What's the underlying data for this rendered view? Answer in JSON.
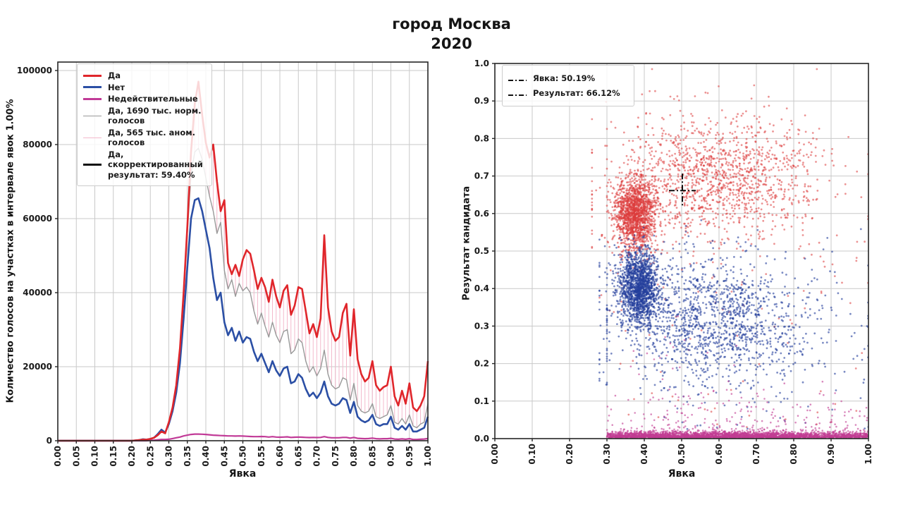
{
  "title": {
    "line1": "город Москва",
    "line2": "2020"
  },
  "colors": {
    "yes_red": "#e0262b",
    "no_blue": "#2b4fa5",
    "invalid_magenta": "#c13a97",
    "normal_gray": "#999999",
    "anomal_pink": "#f3b9cc",
    "corrected_black": "#111111",
    "scatter_red": "#dd3c3c",
    "scatter_blue": "#24409c",
    "scatter_magenta": "#c23c93",
    "grid": "#c9c9c9",
    "spine": "#262626",
    "text": "#1a1a1a"
  },
  "chart_data": [
    {
      "type": "line",
      "xlabel": "Явка",
      "ylabel": "Количество голосов на участках в интервале явок 1.00%",
      "xlim": [
        0,
        1
      ],
      "ylim": [
        0,
        102286
      ],
      "grid": true,
      "x_tick_labels": [
        "0.00",
        "0.05",
        "0.10",
        "0.15",
        "0.20",
        "0.25",
        "0.30",
        "0.35",
        "0.40",
        "0.45",
        "0.50",
        "0.55",
        "0.60",
        "0.65",
        "0.70",
        "0.75",
        "0.80",
        "0.85",
        "0.90",
        "0.95",
        "1.00"
      ],
      "y_tick_labels": [
        "0",
        "20000",
        "40000",
        "60000",
        "80000",
        "100000"
      ],
      "y_ticks": [
        0,
        20000,
        40000,
        60000,
        80000,
        100000
      ],
      "x_start": 0.0,
      "x_step": 0.01,
      "legend_position": "upper left",
      "legend": [
        {
          "label": "Да",
          "color": "#e0262b",
          "lw": 3,
          "style": "solid"
        },
        {
          "label": "Нет",
          "color": "#2b4fa5",
          "lw": 3,
          "style": "solid"
        },
        {
          "label": "Недействительные",
          "color": "#c13a97",
          "lw": 3,
          "style": "solid"
        },
        {
          "label": "Да, 1690 тыс. норм. голосов",
          "color": "#999999",
          "lw": 1.5,
          "style": "solid"
        },
        {
          "label": "Да, 565 тыс. аном. голосов",
          "color": "#f3b9cc",
          "lw": 1.5,
          "style": "solid"
        },
        {
          "label": "Да, скорректированный\nрезультат: 59.40%",
          "color": "#111111",
          "lw": 3,
          "style": "solid"
        }
      ],
      "hatch_fill": {
        "between": [
          "норм. голосов",
          "Да"
        ],
        "color": "#f3b9cc",
        "style": "vertical-lines"
      },
      "series": [
        {
          "name": "Да",
          "color": "#e0262b",
          "lw": 2.6,
          "values": [
            0,
            0,
            0,
            0,
            0,
            0,
            0,
            0,
            0,
            0,
            0,
            0,
            0,
            0,
            0,
            0,
            0,
            0,
            0,
            0,
            0,
            100,
            200,
            300,
            300,
            500,
            800,
            1500,
            2500,
            2000,
            5000,
            9000,
            15000,
            25000,
            40000,
            58000,
            78000,
            91000,
            97000,
            88000,
            80500,
            76500,
            80000,
            70000,
            62000,
            65000,
            48000,
            45000,
            47500,
            44500,
            49000,
            51500,
            50500,
            46000,
            41000,
            44000,
            41500,
            37500,
            43500,
            39000,
            36000,
            40500,
            42000,
            34000,
            36500,
            41500,
            41000,
            35000,
            29000,
            31500,
            28000,
            33000,
            55500,
            36000,
            29500,
            27000,
            28000,
            34500,
            37000,
            23000,
            35500,
            22000,
            18000,
            16000,
            17000,
            21500,
            15000,
            13500,
            14500,
            15000,
            20000,
            12000,
            9500,
            13500,
            10000,
            15500,
            9000,
            8000,
            9500,
            12000,
            21500
          ]
        },
        {
          "name": "Нет",
          "color": "#2b4fa5",
          "lw": 2.6,
          "values": [
            0,
            0,
            0,
            0,
            0,
            0,
            0,
            0,
            0,
            0,
            0,
            0,
            0,
            0,
            0,
            0,
            0,
            0,
            0,
            0,
            0,
            100,
            200,
            400,
            300,
            500,
            800,
            1800,
            3000,
            2200,
            4500,
            8000,
            13000,
            21000,
            33000,
            47000,
            60000,
            65000,
            65500,
            62000,
            57000,
            52000,
            44000,
            38000,
            40000,
            32000,
            28500,
            30500,
            27000,
            29500,
            26500,
            28000,
            27500,
            24000,
            21500,
            23500,
            21000,
            18500,
            21500,
            19000,
            17500,
            19500,
            20000,
            15500,
            16000,
            18000,
            17000,
            14000,
            12000,
            13000,
            11500,
            13000,
            16000,
            12000,
            10000,
            9500,
            10000,
            11500,
            11000,
            7500,
            10500,
            6500,
            5500,
            5000,
            5500,
            7000,
            4500,
            4000,
            4500,
            4500,
            6500,
            3500,
            3000,
            4000,
            3000,
            4500,
            2500,
            2500,
            3000,
            3500,
            6500
          ]
        },
        {
          "name": "Да, норм. голоса",
          "color": "#999999",
          "lw": 1.4,
          "values": [
            0,
            0,
            0,
            0,
            0,
            0,
            0,
            0,
            0,
            0,
            0,
            0,
            0,
            0,
            0,
            0,
            0,
            0,
            0,
            0,
            0,
            100,
            200,
            300,
            300,
            500,
            800,
            1400,
            2400,
            1900,
            4800,
            8800,
            14500,
            24000,
            38500,
            56000,
            72000,
            78000,
            79000,
            76000,
            71000,
            66000,
            62000,
            56000,
            59000,
            46000,
            41000,
            43500,
            39000,
            42500,
            40500,
            41500,
            40000,
            35000,
            31500,
            34500,
            31000,
            28000,
            32000,
            28500,
            26500,
            29500,
            30000,
            23500,
            24500,
            27500,
            26500,
            21500,
            18500,
            20000,
            17500,
            19500,
            24500,
            18000,
            15000,
            14000,
            14500,
            17000,
            16500,
            11000,
            15500,
            9500,
            8000,
            7500,
            8000,
            10000,
            6500,
            6000,
            6500,
            7000,
            9500,
            5000,
            4500,
            6000,
            4500,
            7000,
            4000,
            3500,
            4500,
            5000,
            10000
          ]
        },
        {
          "name": "Недействительные",
          "color": "#c13a97",
          "lw": 2.2,
          "values": [
            0,
            0,
            0,
            0,
            0,
            0,
            0,
            0,
            0,
            0,
            0,
            0,
            0,
            0,
            0,
            0,
            0,
            0,
            0,
            0,
            0,
            0,
            0,
            0,
            0,
            100,
            150,
            250,
            350,
            350,
            400,
            600,
            800,
            1000,
            1300,
            1500,
            1700,
            1800,
            1800,
            1750,
            1700,
            1600,
            1500,
            1450,
            1400,
            1350,
            1300,
            1300,
            1250,
            1300,
            1250,
            1200,
            1150,
            1100,
            1100,
            1150,
            1100,
            1000,
            1100,
            1000,
            950,
            1000,
            1050,
            900,
            950,
            1000,
            950,
            900,
            850,
            900,
            850,
            900,
            1100,
            900,
            800,
            800,
            800,
            900,
            900,
            700,
            900,
            650,
            600,
            550,
            600,
            700,
            550,
            500,
            550,
            550,
            650,
            450,
            400,
            500,
            400,
            550,
            350,
            350,
            400,
            450,
            600
          ]
        }
      ]
    },
    {
      "type": "scatter",
      "xlabel": "Явка",
      "ylabel": "Результат кандидата",
      "xlim": [
        0,
        1
      ],
      "ylim": [
        0,
        1
      ],
      "grid": true,
      "x_tick_labels": [
        "0.00",
        "0.10",
        "0.20",
        "0.30",
        "0.40",
        "0.50",
        "0.60",
        "0.70",
        "0.80",
        "0.90",
        "1.00"
      ],
      "y_tick_labels": [
        "0.0",
        "0.1",
        "0.2",
        "0.3",
        "0.4",
        "0.5",
        "0.6",
        "0.7",
        "0.8",
        "0.9",
        "1.0"
      ],
      "legend": [
        {
          "label": "Явка: 50.19%",
          "style": "dashdot",
          "color": "#111111"
        },
        {
          "label": "Результат: 66.12%",
          "style": "dashdot",
          "color": "#111111"
        }
      ],
      "reference": {
        "turnout": 0.5019,
        "result": 0.6612
      },
      "series": [
        {
          "name": "Да (участки)",
          "color": "#dd3c3c",
          "opacity": 0.55,
          "r": 1.4,
          "seed": 11,
          "clusters": [
            {
              "cx": 0.375,
              "cy": 0.6,
              "sx": 0.027,
              "sy": 0.048,
              "n": 1500
            },
            {
              "cx": 0.6,
              "cy": 0.7,
              "sx": 0.13,
              "sy": 0.075,
              "n": 1100,
              "xmin": 0.3
            },
            {
              "cx": 0.55,
              "cy": 0.66,
              "sx": 0.19,
              "sy": 0.12,
              "n": 350,
              "xmin": 0.26
            }
          ],
          "uniform": [
            {
              "x0": 0.28,
              "x1": 1.0,
              "y0": 0.02,
              "y1": 0.55,
              "n": 80
            }
          ]
        },
        {
          "name": "Нет (участки)",
          "color": "#24409c",
          "opacity": 0.6,
          "r": 1.4,
          "seed": 22,
          "clusters": [
            {
              "cx": 0.385,
              "cy": 0.405,
              "sx": 0.027,
              "sy": 0.048,
              "n": 1500
            },
            {
              "cx": 0.58,
              "cy": 0.31,
              "sx": 0.13,
              "sy": 0.075,
              "n": 1100,
              "xmin": 0.3
            },
            {
              "cx": 0.6,
              "cy": 0.34,
              "sx": 0.19,
              "sy": 0.11,
              "n": 350,
              "xmin": 0.28
            }
          ],
          "uniform": [
            {
              "x0": 0.45,
              "x1": 1.0,
              "y0": 0.02,
              "y1": 0.25,
              "n": 60
            }
          ]
        },
        {
          "name": "Недействительные (участки)",
          "color": "#c23c93",
          "opacity": 0.6,
          "r": 1.3,
          "seed": 33,
          "band": [
            {
              "x0": 0.3,
              "x1": 1.0,
              "ybase": 0.002,
              "yspread": 0.007,
              "n": 2400
            },
            {
              "x0": 0.33,
              "x1": 0.8,
              "ybase": 0.002,
              "yspread": 0.009,
              "n": 700
            }
          ],
          "sparse": [
            {
              "x0": 0.3,
              "x1": 1.0,
              "ybase": 0.01,
              "yspread": 0.055,
              "n": 220
            },
            {
              "x0": 0.34,
              "x1": 0.65,
              "ybase": 0.08,
              "yspread": 0.11,
              "n": 25
            }
          ]
        }
      ]
    }
  ]
}
